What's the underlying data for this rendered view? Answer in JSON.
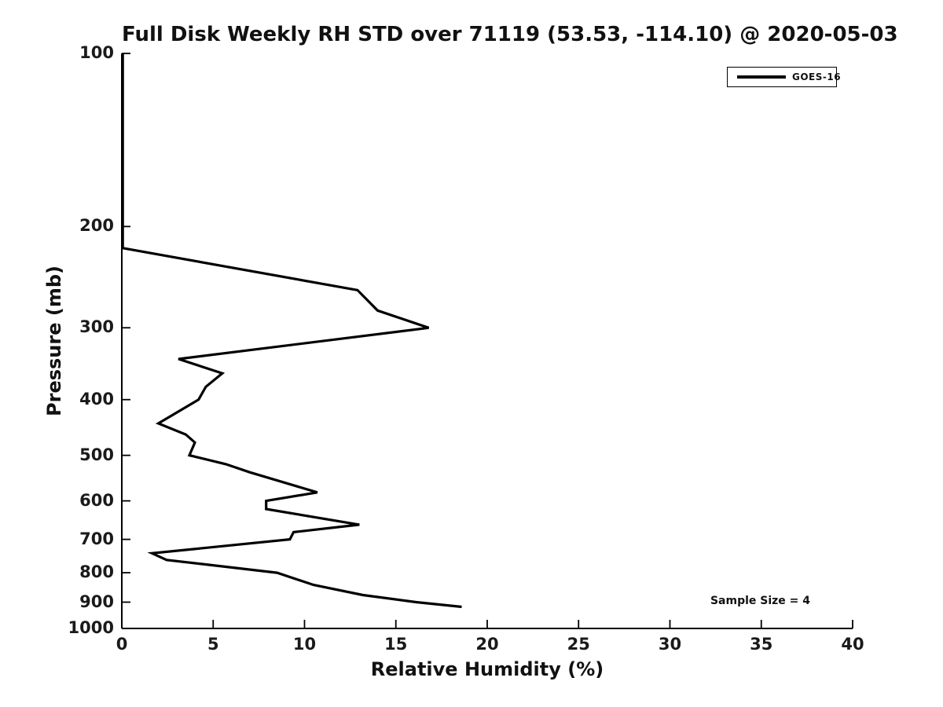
{
  "chart_data": {
    "type": "line",
    "title": "Full Disk Weekly RH STD over 71119 (53.53, -114.10) @ 2020-05-03",
    "xlabel": "Relative Humidity (%)",
    "ylabel": "Pressure (mb)",
    "xlim": [
      0,
      40
    ],
    "ylim": [
      100,
      1000
    ],
    "yscale": "log",
    "y_inverted": true,
    "grid": false,
    "x_ticks": [
      0,
      5,
      10,
      15,
      20,
      25,
      30,
      35,
      40
    ],
    "y_ticks": [
      100,
      200,
      300,
      400,
      500,
      600,
      700,
      800,
      900,
      1000
    ],
    "legend_position": "upper right",
    "legend": [
      {
        "label": "GOES-16",
        "color": "#000000"
      }
    ],
    "annotation": "Sample Size = 4",
    "series": [
      {
        "name": "GOES-16",
        "color": "#000000",
        "points_format": "[relative_humidity_std_percent, pressure_mb]",
        "points": [
          [
            0.05,
            100
          ],
          [
            0.05,
            218
          ],
          [
            12.9,
            258
          ],
          [
            14.0,
            280
          ],
          [
            16.8,
            300
          ],
          [
            3.1,
            340
          ],
          [
            5.5,
            360
          ],
          [
            4.6,
            380
          ],
          [
            4.2,
            400
          ],
          [
            2.0,
            440
          ],
          [
            3.5,
            460
          ],
          [
            4.0,
            475
          ],
          [
            3.7,
            500
          ],
          [
            5.7,
            518
          ],
          [
            7.0,
            535
          ],
          [
            10.7,
            580
          ],
          [
            7.9,
            600
          ],
          [
            7.9,
            620
          ],
          [
            13.0,
            660
          ],
          [
            9.4,
            680
          ],
          [
            9.2,
            700
          ],
          [
            1.65,
            740
          ],
          [
            2.45,
            760
          ],
          [
            8.5,
            800
          ],
          [
            10.5,
            840
          ],
          [
            13.2,
            875
          ],
          [
            16.1,
            900
          ],
          [
            18.6,
            917
          ]
        ]
      }
    ]
  }
}
